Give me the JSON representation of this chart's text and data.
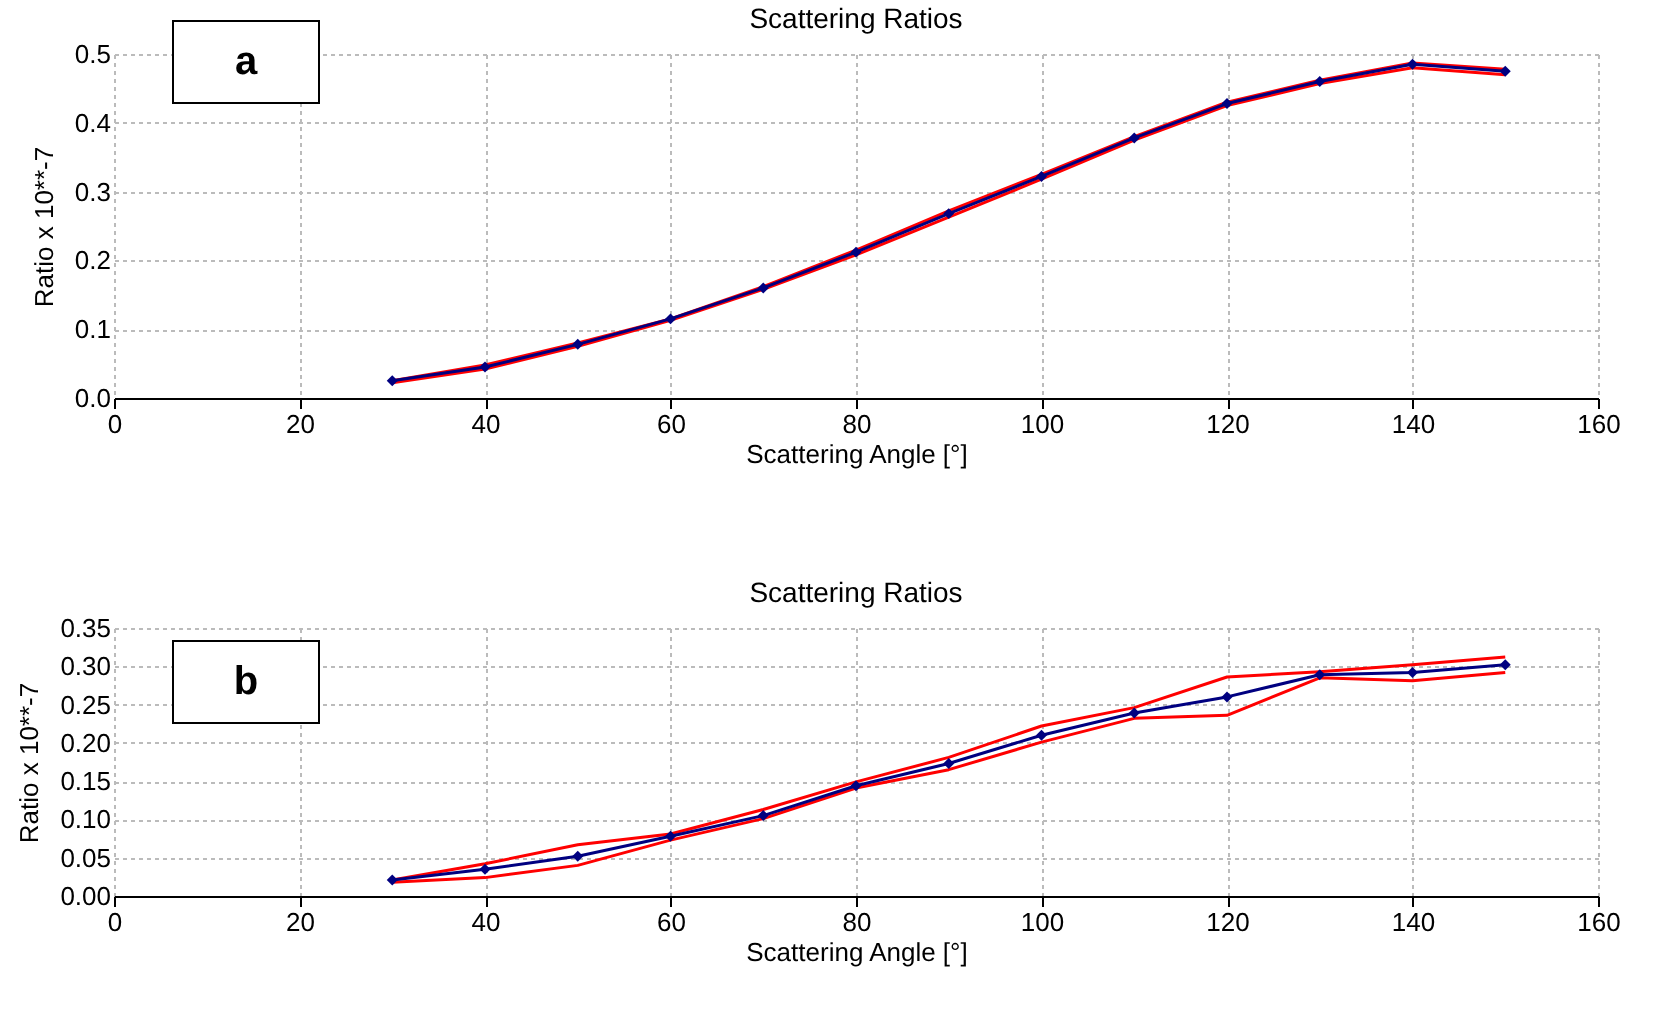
{
  "chart_data": [
    {
      "type": "line",
      "title": "Scattering Ratios",
      "xlabel": "Scattering Angle [°]",
      "ylabel": "Ratio x 10**-7",
      "annotations": [
        "a"
      ],
      "grid": true,
      "marker": "diamond",
      "x": [
        30,
        40,
        50,
        60,
        70,
        80,
        90,
        100,
        110,
        120,
        130,
        140,
        150
      ],
      "xlim": [
        0,
        160
      ],
      "xticks": [
        0,
        20,
        40,
        60,
        80,
        100,
        120,
        140,
        160
      ],
      "ylim": [
        0,
        0.5
      ],
      "yticks": [
        {
          "value": 0,
          "label": "0.0"
        },
        {
          "value": 0.1,
          "label": "0.1"
        },
        {
          "value": 0.2,
          "label": "0.2"
        },
        {
          "value": 0.3,
          "label": "0.3"
        },
        {
          "value": 0.4,
          "label": "0.4"
        },
        {
          "value": 0.5,
          "label": "0.5"
        }
      ],
      "series": [
        {
          "color": "#ff0000",
          "marker": "none",
          "values": [
            0.022,
            0.042,
            0.075,
            0.113,
            0.158,
            0.208,
            0.263,
            0.318,
            0.375,
            0.425,
            0.457,
            0.48,
            0.47
          ]
        },
        {
          "color": "#ff0000",
          "marker": "none",
          "values": [
            0.025,
            0.048,
            0.08,
            0.115,
            0.162,
            0.215,
            0.272,
            0.325,
            0.38,
            0.43,
            0.462,
            0.487,
            0.478
          ]
        },
        {
          "color": "#000080",
          "values": [
            0.025,
            0.045,
            0.078,
            0.115,
            0.16,
            0.212,
            0.268,
            0.322,
            0.378,
            0.428,
            0.46,
            0.485,
            0.475
          ]
        }
      ]
    },
    {
      "type": "line",
      "title": "Scattering Ratios",
      "xlabel": "Scattering Angle [°]",
      "ylabel": "Ratio x 10**-7",
      "annotations": [
        "b"
      ],
      "grid": true,
      "marker": "diamond",
      "x": [
        30,
        40,
        50,
        60,
        70,
        80,
        90,
        100,
        110,
        120,
        130,
        140,
        150
      ],
      "xlim": [
        0,
        160
      ],
      "xticks": [
        0,
        20,
        40,
        60,
        80,
        100,
        120,
        140,
        160
      ],
      "ylim": [
        0,
        0.35
      ],
      "yticks": [
        {
          "value": 0,
          "label": "0.00"
        },
        {
          "value": 0.05,
          "label": "0.05"
        },
        {
          "value": 0.1,
          "label": "0.10"
        },
        {
          "value": 0.15,
          "label": "0.15"
        },
        {
          "value": 0.2,
          "label": "0.20"
        },
        {
          "value": 0.25,
          "label": "0.25"
        },
        {
          "value": 0.3,
          "label": "0.30"
        },
        {
          "value": 0.35,
          "label": "0.35"
        }
      ],
      "series": [
        {
          "color": "#ff0000",
          "marker": "none",
          "values": [
            0.018,
            0.024,
            0.04,
            0.073,
            0.101,
            0.141,
            0.165,
            0.201,
            0.232,
            0.236,
            0.285,
            0.281,
            0.292
          ]
        },
        {
          "color": "#ff0000",
          "marker": "none",
          "values": [
            0.021,
            0.042,
            0.067,
            0.081,
            0.113,
            0.149,
            0.181,
            0.222,
            0.246,
            0.286,
            0.293,
            0.302,
            0.312
          ]
        },
        {
          "color": "#000080",
          "values": [
            0.021,
            0.035,
            0.052,
            0.078,
            0.105,
            0.144,
            0.173,
            0.21,
            0.239,
            0.26,
            0.289,
            0.292,
            0.302
          ]
        }
      ]
    }
  ]
}
